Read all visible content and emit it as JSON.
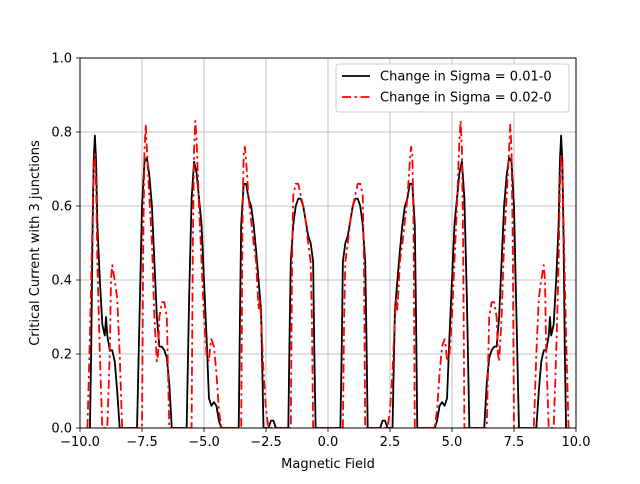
{
  "chart_data": {
    "type": "line",
    "title": "",
    "xlabel": "Magnetic Field",
    "ylabel": "Critical Current with 3 junctions",
    "xlim": [
      -10.0,
      10.0
    ],
    "ylim": [
      0.0,
      1.0
    ],
    "xticks": [
      -10.0,
      -7.5,
      -5.0,
      -2.5,
      0.0,
      2.5,
      5.0,
      7.5,
      10.0
    ],
    "xtick_labels": [
      "−10.0",
      "−7.5",
      "−5.0",
      "−2.5",
      "0.0",
      "2.5",
      "5.0",
      "7.5",
      "10.0"
    ],
    "yticks": [
      0.0,
      0.2,
      0.4,
      0.6,
      0.8,
      1.0
    ],
    "ytick_labels": [
      "0.0",
      "0.2",
      "0.4",
      "0.6",
      "0.8",
      "1.0"
    ],
    "grid": true,
    "legend_position": "top-right",
    "series": [
      {
        "name": "Change in Sigma = 0.01-0",
        "color": "#000000",
        "style": "solid",
        "points": [
          [
            -9.6,
            0.0
          ],
          [
            -9.55,
            0.2
          ],
          [
            -9.5,
            0.5
          ],
          [
            -9.45,
            0.72
          ],
          [
            -9.4,
            0.79
          ],
          [
            -9.35,
            0.72
          ],
          [
            -9.3,
            0.55
          ],
          [
            -9.2,
            0.4
          ],
          [
            -9.1,
            0.28
          ],
          [
            -9.0,
            0.25
          ],
          [
            -8.95,
            0.3
          ],
          [
            -8.9,
            0.25
          ],
          [
            -8.8,
            0.21
          ],
          [
            -8.7,
            0.21
          ],
          [
            -8.6,
            0.18
          ],
          [
            -8.5,
            0.1
          ],
          [
            -8.4,
            0.0
          ],
          [
            -7.7,
            0.0
          ],
          [
            -7.6,
            0.3
          ],
          [
            -7.5,
            0.6
          ],
          [
            -7.4,
            0.72
          ],
          [
            -7.3,
            0.73
          ],
          [
            -7.2,
            0.68
          ],
          [
            -7.1,
            0.6
          ],
          [
            -7.0,
            0.45
          ],
          [
            -6.9,
            0.3
          ],
          [
            -6.8,
            0.22
          ],
          [
            -6.7,
            0.22
          ],
          [
            -6.6,
            0.21
          ],
          [
            -6.5,
            0.19
          ],
          [
            -6.4,
            0.12
          ],
          [
            -6.3,
            0.0
          ],
          [
            -5.7,
            0.0
          ],
          [
            -5.6,
            0.35
          ],
          [
            -5.5,
            0.62
          ],
          [
            -5.4,
            0.72
          ],
          [
            -5.3,
            0.69
          ],
          [
            -5.2,
            0.62
          ],
          [
            -5.1,
            0.55
          ],
          [
            -5.0,
            0.4
          ],
          [
            -4.9,
            0.25
          ],
          [
            -4.8,
            0.08
          ],
          [
            -4.7,
            0.06
          ],
          [
            -4.6,
            0.07
          ],
          [
            -4.5,
            0.06
          ],
          [
            -4.4,
            0.02
          ],
          [
            -4.3,
            0.0
          ],
          [
            -3.6,
            0.0
          ],
          [
            -3.55,
            0.3
          ],
          [
            -3.5,
            0.55
          ],
          [
            -3.4,
            0.66
          ],
          [
            -3.3,
            0.66
          ],
          [
            -3.2,
            0.62
          ],
          [
            -3.1,
            0.6
          ],
          [
            -3.0,
            0.55
          ],
          [
            -2.9,
            0.48
          ],
          [
            -2.8,
            0.4
          ],
          [
            -2.7,
            0.32
          ],
          [
            -2.6,
            0.0
          ],
          [
            -2.4,
            0.0
          ],
          [
            -2.3,
            0.02
          ],
          [
            -2.2,
            0.02
          ],
          [
            -2.1,
            0.0
          ],
          [
            -1.6,
            0.0
          ],
          [
            -1.55,
            0.25
          ],
          [
            -1.5,
            0.45
          ],
          [
            -1.4,
            0.55
          ],
          [
            -1.3,
            0.6
          ],
          [
            -1.2,
            0.62
          ],
          [
            -1.1,
            0.62
          ],
          [
            -1.0,
            0.6
          ],
          [
            -0.9,
            0.56
          ],
          [
            -0.8,
            0.52
          ],
          [
            -0.7,
            0.5
          ],
          [
            -0.6,
            0.45
          ],
          [
            -0.55,
            0.2
          ],
          [
            -0.5,
            0.0
          ],
          [
            0.5,
            0.0
          ],
          [
            0.55,
            0.2
          ],
          [
            0.6,
            0.45
          ],
          [
            0.7,
            0.5
          ],
          [
            0.8,
            0.52
          ],
          [
            0.9,
            0.56
          ],
          [
            1.0,
            0.6
          ],
          [
            1.1,
            0.62
          ],
          [
            1.2,
            0.62
          ],
          [
            1.3,
            0.6
          ],
          [
            1.4,
            0.55
          ],
          [
            1.5,
            0.45
          ],
          [
            1.55,
            0.25
          ],
          [
            1.6,
            0.0
          ],
          [
            2.1,
            0.0
          ],
          [
            2.2,
            0.02
          ],
          [
            2.3,
            0.02
          ],
          [
            2.4,
            0.0
          ],
          [
            2.6,
            0.0
          ],
          [
            2.7,
            0.32
          ],
          [
            2.8,
            0.4
          ],
          [
            2.9,
            0.48
          ],
          [
            3.0,
            0.55
          ],
          [
            3.1,
            0.6
          ],
          [
            3.2,
            0.62
          ],
          [
            3.3,
            0.66
          ],
          [
            3.4,
            0.66
          ],
          [
            3.5,
            0.55
          ],
          [
            3.55,
            0.3
          ],
          [
            3.6,
            0.0
          ],
          [
            4.3,
            0.0
          ],
          [
            4.4,
            0.02
          ],
          [
            4.5,
            0.06
          ],
          [
            4.6,
            0.07
          ],
          [
            4.7,
            0.06
          ],
          [
            4.8,
            0.08
          ],
          [
            4.9,
            0.25
          ],
          [
            5.0,
            0.4
          ],
          [
            5.1,
            0.55
          ],
          [
            5.2,
            0.62
          ],
          [
            5.3,
            0.69
          ],
          [
            5.4,
            0.72
          ],
          [
            5.5,
            0.62
          ],
          [
            5.6,
            0.35
          ],
          [
            5.7,
            0.0
          ],
          [
            6.3,
            0.0
          ],
          [
            6.4,
            0.12
          ],
          [
            6.5,
            0.19
          ],
          [
            6.6,
            0.21
          ],
          [
            6.7,
            0.22
          ],
          [
            6.8,
            0.22
          ],
          [
            6.9,
            0.3
          ],
          [
            7.0,
            0.45
          ],
          [
            7.1,
            0.6
          ],
          [
            7.2,
            0.68
          ],
          [
            7.3,
            0.73
          ],
          [
            7.4,
            0.72
          ],
          [
            7.5,
            0.6
          ],
          [
            7.6,
            0.3
          ],
          [
            7.7,
            0.0
          ],
          [
            8.4,
            0.0
          ],
          [
            8.5,
            0.1
          ],
          [
            8.6,
            0.18
          ],
          [
            8.7,
            0.21
          ],
          [
            8.8,
            0.21
          ],
          [
            8.9,
            0.25
          ],
          [
            8.95,
            0.3
          ],
          [
            9.0,
            0.25
          ],
          [
            9.1,
            0.28
          ],
          [
            9.2,
            0.4
          ],
          [
            9.3,
            0.55
          ],
          [
            9.35,
            0.72
          ],
          [
            9.4,
            0.79
          ],
          [
            9.45,
            0.72
          ],
          [
            9.5,
            0.5
          ],
          [
            9.55,
            0.2
          ],
          [
            9.6,
            0.0
          ]
        ]
      },
      {
        "name": "Change in Sigma = 0.02-0",
        "color": "#ff0000",
        "style": "dashdot",
        "points": [
          [
            -9.7,
            0.0
          ],
          [
            -9.6,
            0.25
          ],
          [
            -9.5,
            0.55
          ],
          [
            -9.45,
            0.7
          ],
          [
            -9.4,
            0.74
          ],
          [
            -9.35,
            0.65
          ],
          [
            -9.3,
            0.45
          ],
          [
            -9.2,
            0.2
          ],
          [
            -9.1,
            0.0
          ],
          [
            -8.9,
            0.0
          ],
          [
            -8.8,
            0.2
          ],
          [
            -8.75,
            0.4
          ],
          [
            -8.7,
            0.44
          ],
          [
            -8.6,
            0.4
          ],
          [
            -8.5,
            0.35
          ],
          [
            -8.4,
            0.2
          ],
          [
            -8.3,
            0.0
          ],
          [
            -7.5,
            0.0
          ],
          [
            -7.45,
            0.5
          ],
          [
            -7.4,
            0.75
          ],
          [
            -7.35,
            0.82
          ],
          [
            -7.3,
            0.75
          ],
          [
            -7.2,
            0.62
          ],
          [
            -7.1,
            0.5
          ],
          [
            -7.0,
            0.3
          ],
          [
            -6.9,
            0.18
          ],
          [
            -6.85,
            0.2
          ],
          [
            -6.8,
            0.3
          ],
          [
            -6.7,
            0.34
          ],
          [
            -6.6,
            0.34
          ],
          [
            -6.5,
            0.3
          ],
          [
            -6.45,
            0.15
          ],
          [
            -6.4,
            0.0
          ],
          [
            -5.5,
            0.0
          ],
          [
            -5.45,
            0.5
          ],
          [
            -5.4,
            0.75
          ],
          [
            -5.35,
            0.83
          ],
          [
            -5.3,
            0.78
          ],
          [
            -5.2,
            0.6
          ],
          [
            -5.1,
            0.45
          ],
          [
            -5.0,
            0.3
          ],
          [
            -4.9,
            0.2
          ],
          [
            -4.8,
            0.18
          ],
          [
            -4.75,
            0.22
          ],
          [
            -4.7,
            0.24
          ],
          [
            -4.6,
            0.22
          ],
          [
            -4.5,
            0.15
          ],
          [
            -4.4,
            0.05
          ],
          [
            -4.3,
            0.0
          ],
          [
            -3.5,
            0.0
          ],
          [
            -3.45,
            0.55
          ],
          [
            -3.4,
            0.74
          ],
          [
            -3.35,
            0.76
          ],
          [
            -3.3,
            0.72
          ],
          [
            -3.2,
            0.62
          ],
          [
            -3.1,
            0.56
          ],
          [
            -3.0,
            0.5
          ],
          [
            -2.9,
            0.45
          ],
          [
            -2.8,
            0.32
          ],
          [
            -2.75,
            0.35
          ],
          [
            -2.7,
            0.3
          ],
          [
            -2.6,
            0.15
          ],
          [
            -2.5,
            0.05
          ],
          [
            -2.4,
            0.0
          ],
          [
            -1.5,
            0.0
          ],
          [
            -1.45,
            0.45
          ],
          [
            -1.4,
            0.63
          ],
          [
            -1.3,
            0.66
          ],
          [
            -1.2,
            0.66
          ],
          [
            -1.1,
            0.63
          ],
          [
            -1.0,
            0.6
          ],
          [
            -0.9,
            0.56
          ],
          [
            -0.8,
            0.5
          ],
          [
            -0.7,
            0.45
          ],
          [
            -0.65,
            0.3
          ],
          [
            -0.6,
            0.0
          ],
          [
            0.6,
            0.0
          ],
          [
            0.65,
            0.3
          ],
          [
            0.7,
            0.45
          ],
          [
            0.8,
            0.5
          ],
          [
            0.9,
            0.56
          ],
          [
            1.0,
            0.6
          ],
          [
            1.1,
            0.63
          ],
          [
            1.2,
            0.66
          ],
          [
            1.3,
            0.66
          ],
          [
            1.4,
            0.63
          ],
          [
            1.45,
            0.45
          ],
          [
            1.5,
            0.0
          ],
          [
            2.4,
            0.0
          ],
          [
            2.5,
            0.05
          ],
          [
            2.6,
            0.15
          ],
          [
            2.7,
            0.3
          ],
          [
            2.75,
            0.35
          ],
          [
            2.8,
            0.32
          ],
          [
            2.9,
            0.45
          ],
          [
            3.0,
            0.5
          ],
          [
            3.1,
            0.56
          ],
          [
            3.2,
            0.62
          ],
          [
            3.3,
            0.72
          ],
          [
            3.35,
            0.76
          ],
          [
            3.4,
            0.74
          ],
          [
            3.45,
            0.55
          ],
          [
            3.5,
            0.0
          ],
          [
            4.3,
            0.0
          ],
          [
            4.4,
            0.05
          ],
          [
            4.5,
            0.15
          ],
          [
            4.6,
            0.22
          ],
          [
            4.7,
            0.24
          ],
          [
            4.75,
            0.22
          ],
          [
            4.8,
            0.18
          ],
          [
            4.9,
            0.2
          ],
          [
            5.0,
            0.3
          ],
          [
            5.1,
            0.45
          ],
          [
            5.2,
            0.6
          ],
          [
            5.3,
            0.78
          ],
          [
            5.35,
            0.83
          ],
          [
            5.4,
            0.75
          ],
          [
            5.45,
            0.5
          ],
          [
            5.5,
            0.0
          ],
          [
            6.4,
            0.0
          ],
          [
            6.45,
            0.15
          ],
          [
            6.5,
            0.3
          ],
          [
            6.6,
            0.34
          ],
          [
            6.7,
            0.34
          ],
          [
            6.8,
            0.3
          ],
          [
            6.85,
            0.2
          ],
          [
            6.9,
            0.18
          ],
          [
            7.0,
            0.3
          ],
          [
            7.1,
            0.5
          ],
          [
            7.2,
            0.62
          ],
          [
            7.3,
            0.75
          ],
          [
            7.35,
            0.82
          ],
          [
            7.4,
            0.75
          ],
          [
            7.45,
            0.5
          ],
          [
            7.5,
            0.0
          ],
          [
            8.3,
            0.0
          ],
          [
            8.4,
            0.2
          ],
          [
            8.5,
            0.35
          ],
          [
            8.6,
            0.4
          ],
          [
            8.7,
            0.44
          ],
          [
            8.75,
            0.4
          ],
          [
            8.8,
            0.2
          ],
          [
            8.9,
            0.0
          ],
          [
            9.1,
            0.0
          ],
          [
            9.2,
            0.2
          ],
          [
            9.3,
            0.45
          ],
          [
            9.35,
            0.65
          ],
          [
            9.4,
            0.74
          ],
          [
            9.45,
            0.7
          ],
          [
            9.5,
            0.55
          ],
          [
            9.6,
            0.25
          ],
          [
            9.7,
            0.0
          ]
        ]
      }
    ]
  }
}
